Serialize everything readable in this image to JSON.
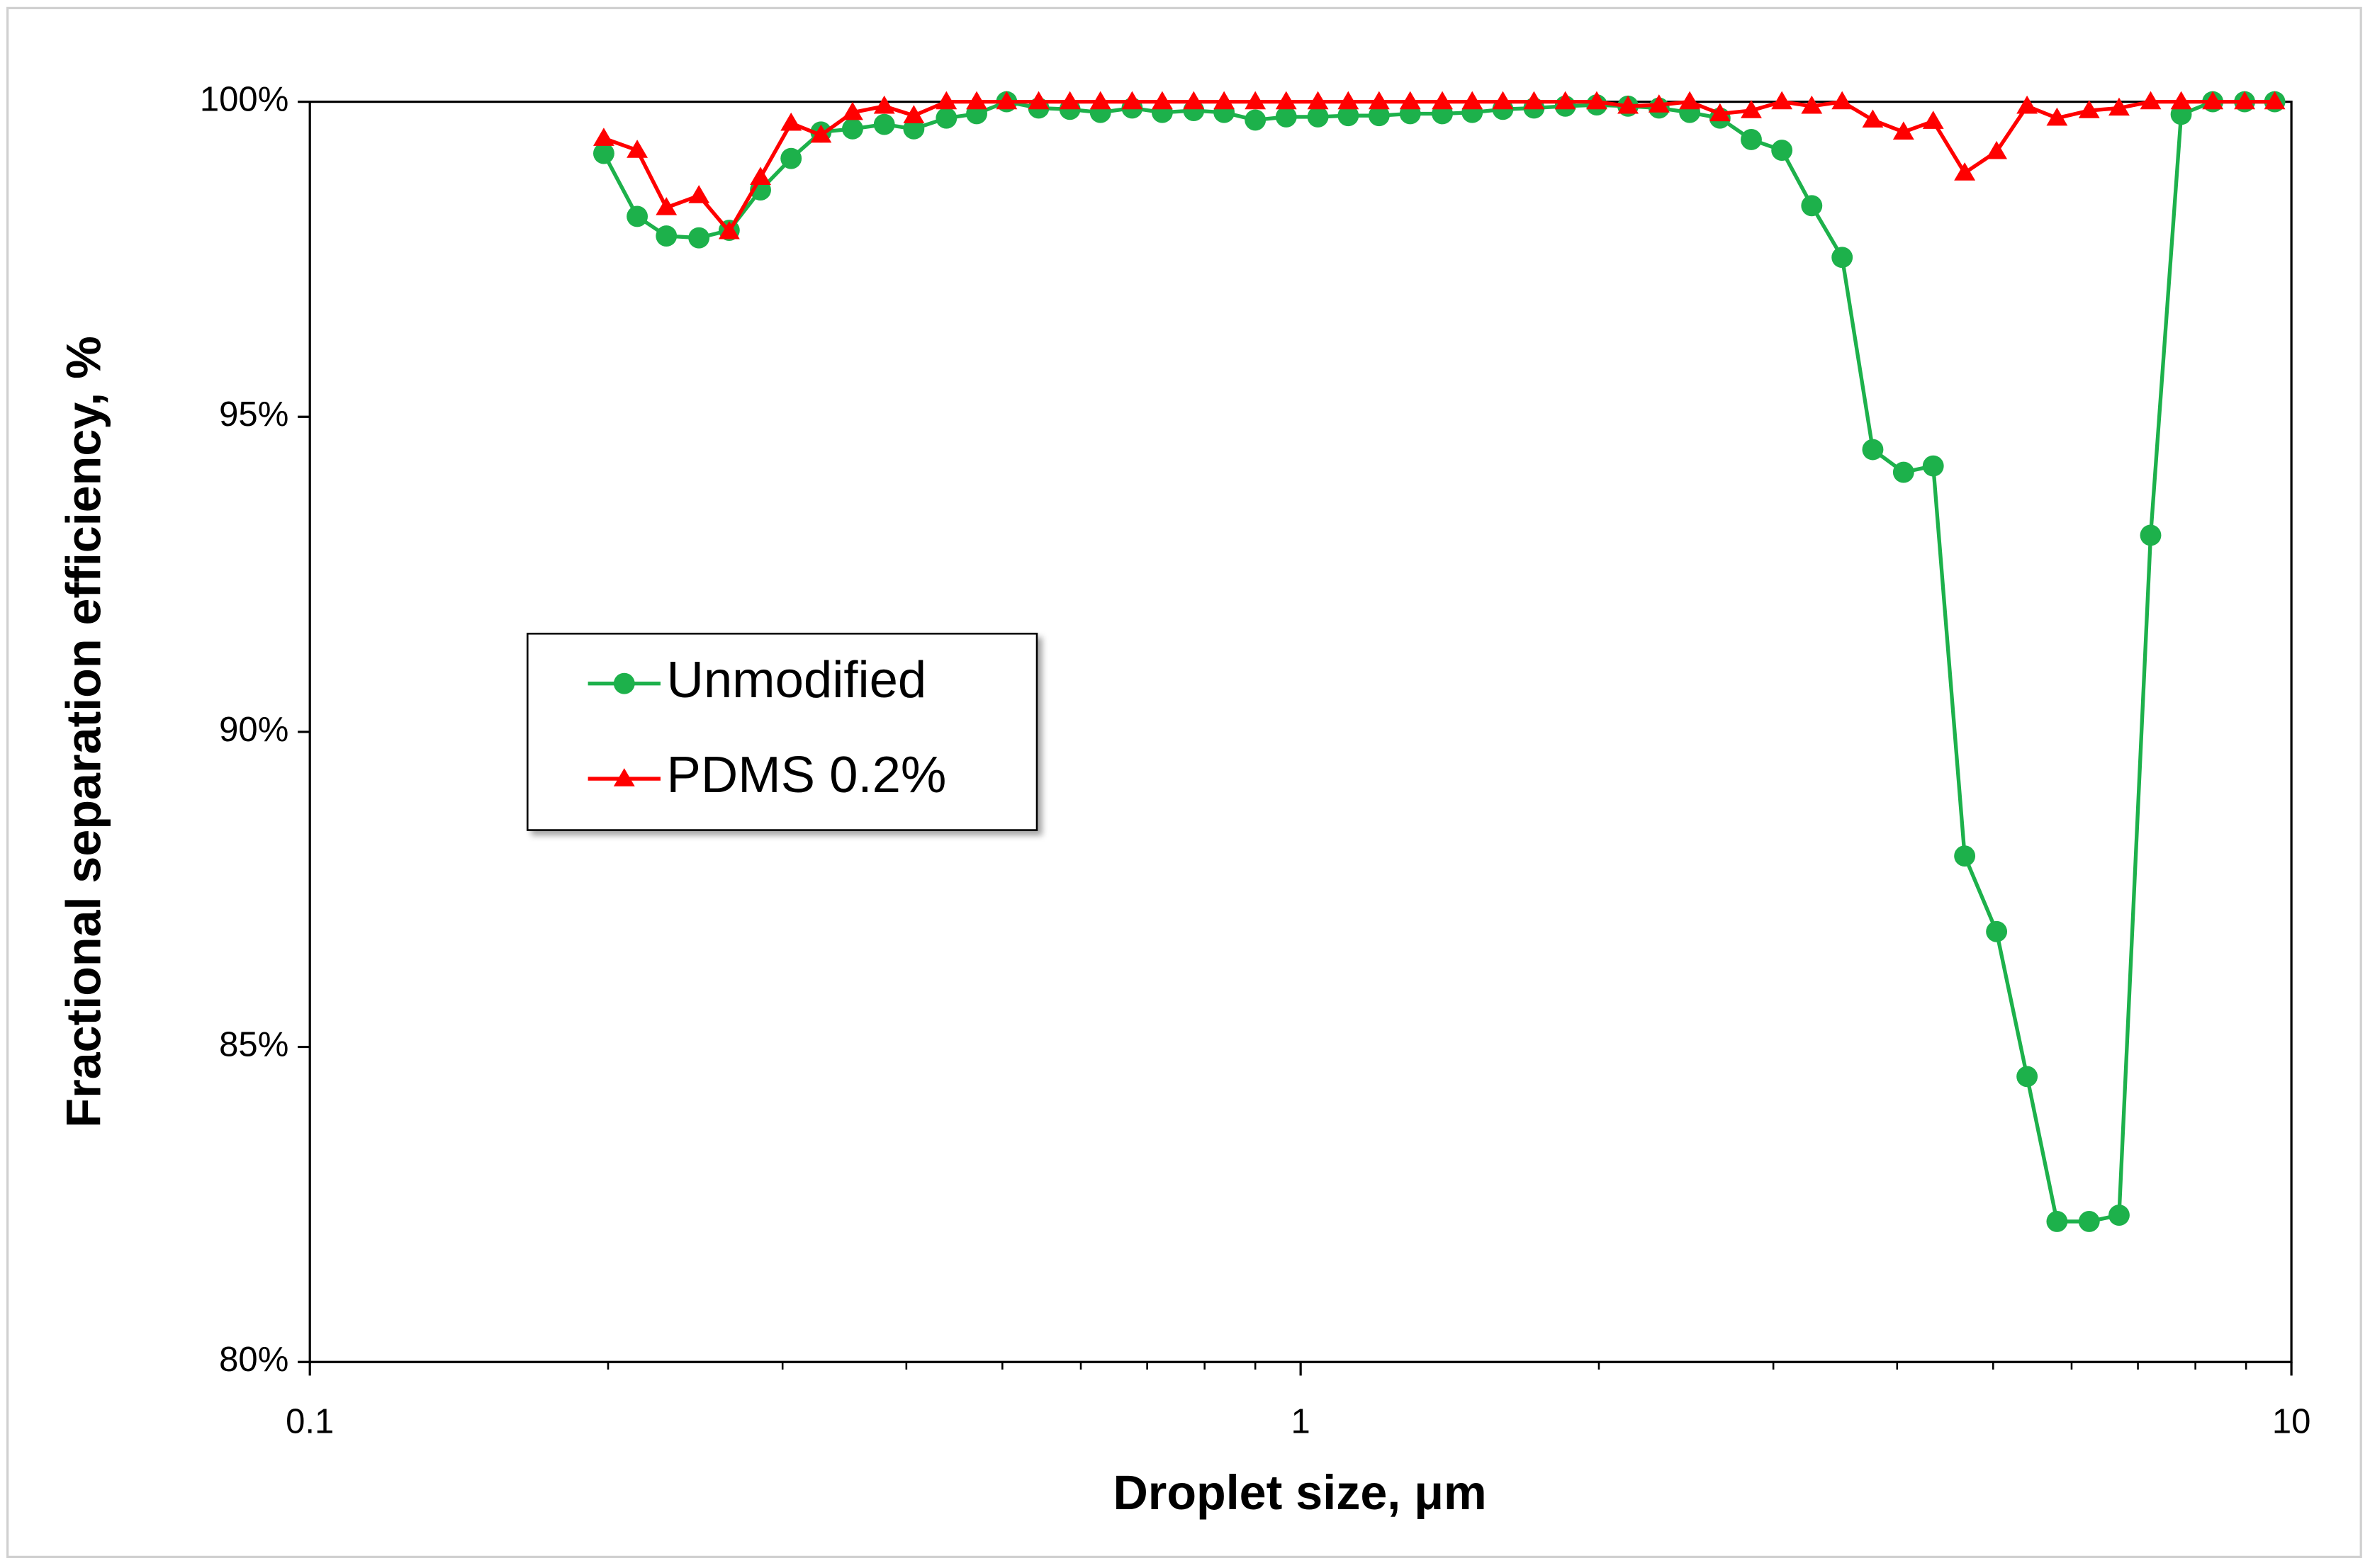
{
  "chart_data": {
    "type": "line",
    "xlabel": "Droplet size, μm",
    "ylabel": "Fractional separation efficiency, %",
    "xscale": "log",
    "xlim": [
      0.1,
      10
    ],
    "ylim": [
      80,
      100
    ],
    "xticks": [
      0.1,
      1,
      10
    ],
    "xminorticks": [
      0.2,
      0.3,
      0.4,
      0.5,
      0.6,
      0.7,
      0.8,
      0.9,
      2,
      3,
      4,
      5,
      6,
      7,
      8,
      9
    ],
    "yticks": [
      {
        "value": 80,
        "label": "80%"
      },
      {
        "value": 85,
        "label": "85%"
      },
      {
        "value": 90,
        "label": "90%"
      },
      {
        "value": 95,
        "label": "95%"
      },
      {
        "value": 100,
        "label": "100%"
      }
    ],
    "legend": "center-left",
    "x": [
      0.198,
      0.214,
      0.229,
      0.247,
      0.265,
      0.285,
      0.306,
      0.328,
      0.353,
      0.38,
      0.407,
      0.439,
      0.471,
      0.505,
      0.544,
      0.585,
      0.628,
      0.676,
      0.725,
      0.78,
      0.837,
      0.9,
      0.967,
      1.041,
      1.117,
      1.2,
      1.29,
      1.39,
      1.49,
      1.6,
      1.72,
      1.85,
      1.99,
      2.14,
      2.3,
      2.47,
      2.65,
      2.85,
      3.06,
      3.28,
      3.52,
      3.78,
      4.06,
      4.35,
      4.68,
      5.04,
      5.41,
      5.8,
      6.25,
      6.7,
      7.21,
      7.74,
      8.33,
      8.97,
      9.62
    ],
    "series": [
      {
        "name": "Unmodified",
        "color": "#1db14b",
        "marker": "circle",
        "values": [
          99.18,
          98.18,
          97.87,
          97.84,
          97.96,
          98.6,
          99.1,
          99.52,
          99.57,
          99.64,
          99.57,
          99.74,
          99.81,
          100,
          99.9,
          99.88,
          99.83,
          99.9,
          99.83,
          99.86,
          99.83,
          99.71,
          99.76,
          99.76,
          99.78,
          99.78,
          99.81,
          99.81,
          99.83,
          99.88,
          99.9,
          99.93,
          99.95,
          99.93,
          99.9,
          99.83,
          99.74,
          99.4,
          99.23,
          98.35,
          97.53,
          94.48,
          94.12,
          94.22,
          88.03,
          86.83,
          84.53,
          82.23,
          82.23,
          82.33,
          93.12,
          99.8,
          100,
          100,
          100
        ]
      },
      {
        "name": "PDMS 0.2%",
        "color": "#ff0000",
        "marker": "triangle",
        "values": [
          99.42,
          99.23,
          98.32,
          98.51,
          97.94,
          98.8,
          99.66,
          99.47,
          99.83,
          99.93,
          99.78,
          100,
          100,
          100,
          100,
          100,
          100,
          100,
          100,
          100,
          100,
          100,
          100,
          100,
          100,
          100,
          100,
          100,
          100,
          100,
          100,
          100,
          100,
          99.93,
          99.95,
          100,
          99.81,
          99.86,
          100,
          99.93,
          100,
          99.71,
          99.52,
          99.69,
          98.87,
          99.21,
          99.93,
          99.74,
          99.86,
          99.9,
          100,
          100,
          100,
          100,
          100
        ]
      }
    ]
  }
}
